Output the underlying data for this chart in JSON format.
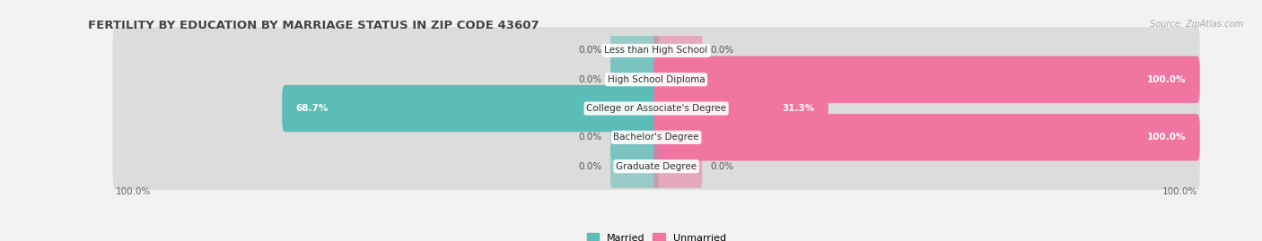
{
  "title": "FERTILITY BY EDUCATION BY MARRIAGE STATUS IN ZIP CODE 43607",
  "source": "Source: ZipAtlas.com",
  "categories": [
    "Less than High School",
    "High School Diploma",
    "College or Associate's Degree",
    "Bachelor's Degree",
    "Graduate Degree"
  ],
  "married_values": [
    0.0,
    0.0,
    68.7,
    0.0,
    0.0
  ],
  "unmarried_values": [
    0.0,
    100.0,
    31.3,
    100.0,
    0.0
  ],
  "married_color": "#5bbcb8",
  "unmarried_color": "#f075a0",
  "married_label": "Married",
  "unmarried_label": "Unmarried",
  "bg_color": "#f2f2f2",
  "bar_bg_color": "#dcdcdc",
  "bar_height": 0.62,
  "axis_label_left": "100.0%",
  "axis_label_right": "100.0%",
  "title_fontsize": 9.5,
  "legend_fontsize": 8,
  "category_fontsize": 7.5,
  "value_fontsize": 7.5
}
